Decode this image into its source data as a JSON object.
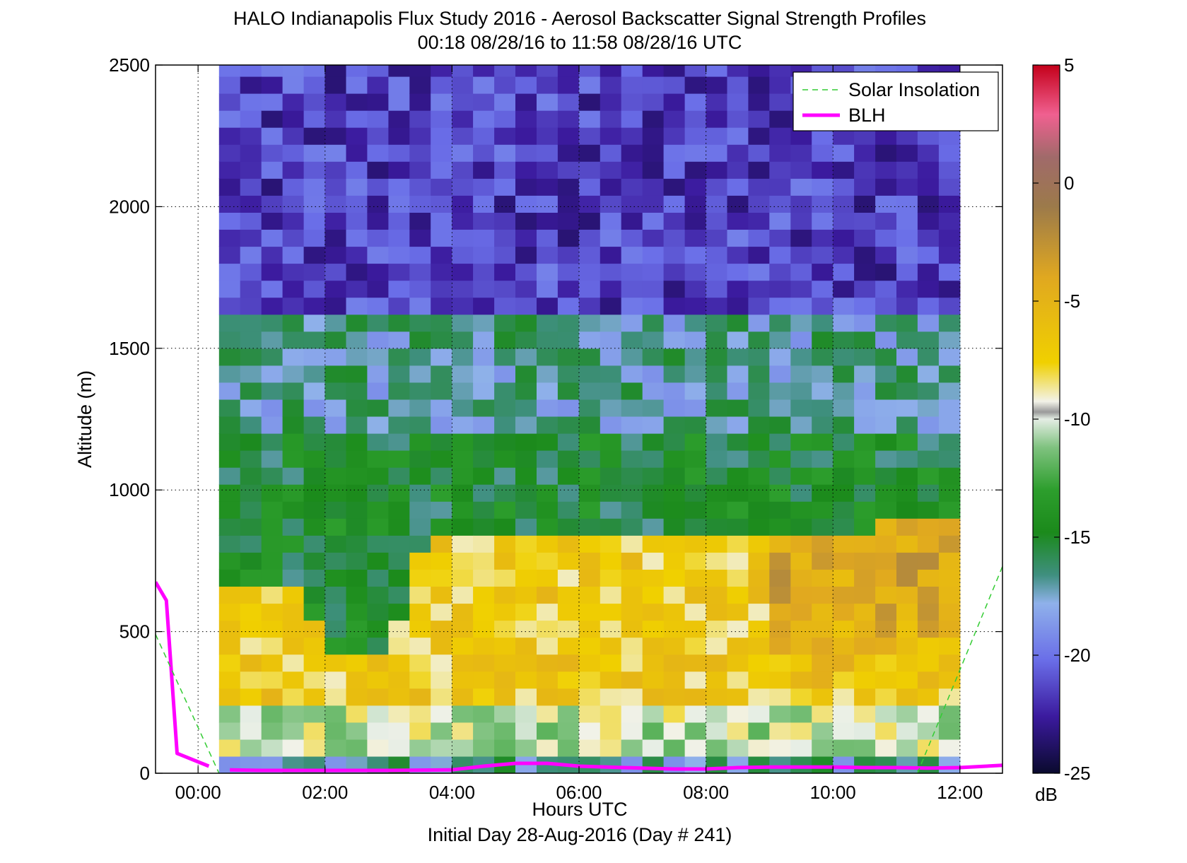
{
  "chart_data": {
    "type": "heatmap",
    "title": "HALO Indianapolis Flux Study 2016 - Aerosol Backscatter Signal Strength Profiles",
    "subtitle": "00:18 08/28/16 to 11:58 08/28/16  UTC",
    "xlabel": "Hours UTC",
    "xlabel2": "Initial Day 28-Aug-2016 (Day # 241)",
    "ylabel": "Altitude (m)",
    "xlim_hours": [
      -0.67,
      12.67
    ],
    "ylim": [
      0,
      2500
    ],
    "x_ticks": [
      {
        "value": 0,
        "label": "00:00"
      },
      {
        "value": 2,
        "label": "02:00"
      },
      {
        "value": 4,
        "label": "04:00"
      },
      {
        "value": 6,
        "label": "06:00"
      },
      {
        "value": 8,
        "label": "08:00"
      },
      {
        "value": 10,
        "label": "10:00"
      },
      {
        "value": 12,
        "label": "12:00"
      }
    ],
    "y_ticks": [
      0,
      500,
      1000,
      1500,
      2000,
      2500
    ],
    "grid": true,
    "colorbar": {
      "label": "dB",
      "range": [
        -25,
        5
      ],
      "ticks": [
        5,
        0,
        -5,
        -10,
        -15,
        -20,
        -25
      ]
    },
    "legend": {
      "position": "top-right",
      "entries": [
        {
          "name": "Solar Insolation",
          "color": "#33cc33",
          "style": "dashed"
        },
        {
          "name": "BLH",
          "color": "#ff00ff",
          "style": "solid"
        }
      ]
    },
    "heatmap": {
      "x_start_hours": 0.33,
      "x_end_hours": 12.0,
      "n_columns": 35,
      "layers": [
        {
          "alt_range": [
            0,
            60
          ],
          "value": -17
        },
        {
          "alt_range": [
            60,
            250
          ],
          "value": -10
        },
        {
          "alt_range": [
            250,
            "blh_top"
          ],
          "value": -7
        },
        {
          "alt_range": [
            "blh_top",
            1200
          ],
          "value": -15
        },
        {
          "alt_range": [
            1200,
            1600
          ],
          "value": -17
        },
        {
          "alt_range": [
            1600,
            2500
          ],
          "value": -21
        }
      ],
      "note_blh_top": [
        [
          0.33,
          650
        ],
        [
          1.5,
          650
        ],
        [
          2.0,
          450
        ],
        [
          3.0,
          420
        ],
        [
          3.5,
          800
        ],
        [
          5.0,
          850
        ],
        [
          8.0,
          850
        ],
        [
          10.0,
          850
        ],
        [
          12.0,
          900
        ]
      ]
    },
    "series": [
      {
        "name": "BLH",
        "x": [
          -0.67,
          -0.5,
          -0.33,
          0.17,
          0.5,
          1.0,
          2.0,
          3.0,
          4.0,
          4.5,
          5.0,
          5.5,
          6.0,
          7.0,
          7.5,
          8.0,
          8.5,
          9.0,
          10.0,
          10.5,
          11.0,
          11.5,
          12.0,
          12.67
        ],
        "y": [
          675,
          610,
          70,
          25,
          12,
          10,
          10,
          10,
          12,
          25,
          35,
          35,
          25,
          18,
          15,
          15,
          20,
          22,
          22,
          20,
          20,
          18,
          20,
          28
        ]
      },
      {
        "name": "Solar Insolation",
        "x": [
          -0.67,
          0.33,
          11.33,
          12.67
        ],
        "y": [
          490,
          0,
          0,
          730
        ]
      }
    ]
  }
}
